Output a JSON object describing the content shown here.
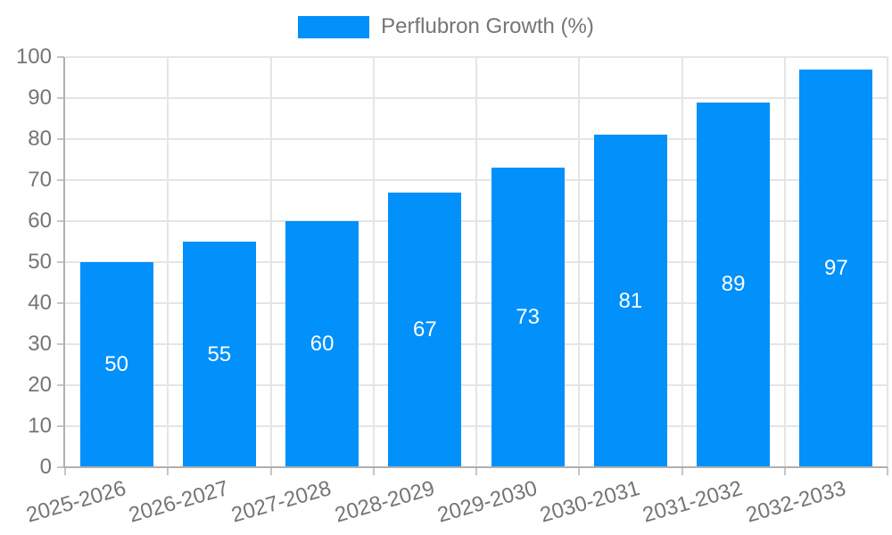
{
  "legend": {
    "label": "Perflubron Growth (%)"
  },
  "chart_data": {
    "type": "bar",
    "title": "",
    "series_name": "Perflubron Growth (%)",
    "categories": [
      "2025-2026",
      "2026-2027",
      "2027-2028",
      "2028-2029",
      "2029-2030",
      "2030-2031",
      "2031-2032",
      "2032-2033"
    ],
    "values": [
      50,
      55,
      60,
      67,
      73,
      81,
      89,
      97
    ],
    "value_labels": [
      "50",
      "55",
      "60",
      "67",
      "73",
      "81",
      "89",
      "97"
    ],
    "xlabel": "",
    "ylabel": "",
    "ylim": [
      0,
      100
    ],
    "yticks": [
      0,
      10,
      20,
      30,
      40,
      50,
      60,
      70,
      80,
      90,
      100
    ],
    "grid": true,
    "legend_position": "top",
    "colors": {
      "bar": "#0290fa",
      "value_label": "#ffffff",
      "axis_text": "#757575",
      "gridline": "#e5e5e5",
      "axis_line": "#b0b0b0",
      "tick": "#c6c6c6",
      "background": "#ffffff"
    }
  }
}
